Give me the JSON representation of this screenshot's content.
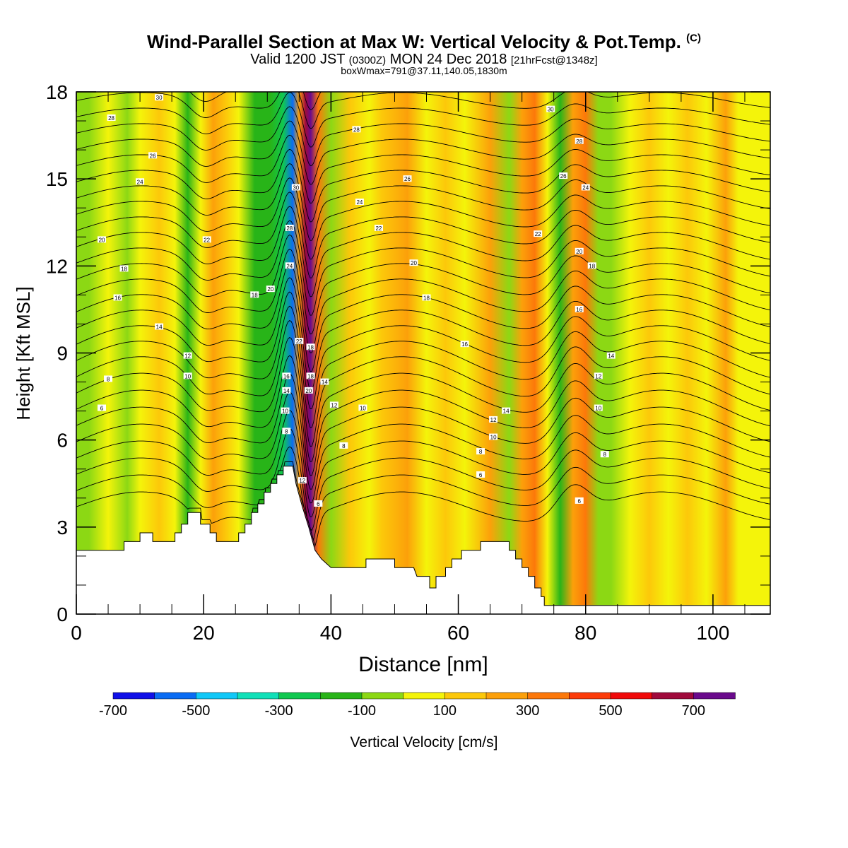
{
  "title": {
    "main": "Wind-Parallel Section at Max W: Vertical Velocity & Pot.Temp.",
    "copyright": "(C)",
    "valid_prefix": "Valid 1200 JST",
    "valid_z": "(0300Z)",
    "valid_date": "MON 24 Dec 2018",
    "forecast": "[21hrFcst@1348z]",
    "boxline": "boxWmax=791@37.11,140.05,1830m"
  },
  "chart_data": {
    "type": "heatmap",
    "xlabel": "Distance [nm]",
    "ylabel": "Height [Kft MSL]",
    "xlim": [
      0,
      109
    ],
    "ylim": [
      0,
      18
    ],
    "x_ticks": [
      0,
      20,
      40,
      60,
      80,
      100
    ],
    "y_ticks": [
      0,
      3,
      6,
      9,
      12,
      15,
      18
    ],
    "colorbar": {
      "label": "Vertical Velocity [cm/s]",
      "tick_labels": [
        "-700",
        "-500",
        "-300",
        "-100",
        "100",
        "300",
        "500",
        "700"
      ],
      "colors": [
        "#1010e8",
        "#0a6cf4",
        "#10c8f8",
        "#10e0b8",
        "#10c850",
        "#28b418",
        "#8cd814",
        "#f4f40a",
        "#fcc80a",
        "#fca00a",
        "#fc780a",
        "#fc3c0a",
        "#f00a0a",
        "#a00a3c",
        "#6a0a8c"
      ]
    },
    "terrain": [
      [
        0,
        2.2
      ],
      [
        7.5,
        2.2
      ],
      [
        7.5,
        2.5
      ],
      [
        10,
        2.5
      ],
      [
        10,
        2.8
      ],
      [
        12,
        2.8
      ],
      [
        12,
        2.5
      ],
      [
        15.5,
        2.5
      ],
      [
        15.5,
        2.8
      ],
      [
        16.5,
        2.8
      ],
      [
        16.5,
        3.1
      ],
      [
        17.5,
        3.1
      ],
      [
        17.5,
        3.5
      ],
      [
        19.5,
        3.5
      ],
      [
        19.5,
        3.1
      ],
      [
        21,
        3.1
      ],
      [
        21,
        2.8
      ],
      [
        22,
        2.8
      ],
      [
        22,
        2.5
      ],
      [
        25.5,
        2.5
      ],
      [
        25.5,
        2.8
      ],
      [
        26.5,
        2.8
      ],
      [
        26.5,
        3.1
      ],
      [
        27.5,
        3.1
      ],
      [
        27.5,
        3.5
      ],
      [
        28.5,
        3.5
      ],
      [
        28.5,
        3.8
      ],
      [
        29.5,
        3.8
      ],
      [
        29.5,
        4.2
      ],
      [
        30.5,
        4.2
      ],
      [
        30.5,
        4.5
      ],
      [
        31.5,
        4.5
      ],
      [
        31.5,
        4.8
      ],
      [
        32.5,
        4.8
      ],
      [
        32.5,
        5.1
      ],
      [
        34,
        5.1
      ],
      [
        34.5,
        4.5
      ],
      [
        35.5,
        3.7
      ],
      [
        36.5,
        3.0
      ],
      [
        37.5,
        2.2
      ],
      [
        38.5,
        1.9
      ],
      [
        40,
        1.6
      ],
      [
        43,
        1.6
      ],
      [
        45.5,
        1.6
      ],
      [
        45.5,
        1.9
      ],
      [
        50,
        1.9
      ],
      [
        50,
        1.6
      ],
      [
        53,
        1.6
      ],
      [
        53.5,
        1.3
      ],
      [
        55.5,
        1.3
      ],
      [
        55.5,
        0.9
      ],
      [
        56.5,
        0.9
      ],
      [
        56.5,
        1.3
      ],
      [
        58,
        1.3
      ],
      [
        58,
        1.6
      ],
      [
        59,
        1.6
      ],
      [
        59,
        1.9
      ],
      [
        60.5,
        1.9
      ],
      [
        60.5,
        2.2
      ],
      [
        63.5,
        2.2
      ],
      [
        63.5,
        2.5
      ],
      [
        68,
        2.5
      ],
      [
        68,
        2.2
      ],
      [
        69,
        2.2
      ],
      [
        69,
        1.9
      ],
      [
        70,
        1.9
      ],
      [
        70,
        1.6
      ],
      [
        71,
        1.6
      ],
      [
        71,
        1.3
      ],
      [
        72,
        1.3
      ],
      [
        72,
        0.9
      ],
      [
        73,
        0.9
      ],
      [
        73,
        0.6
      ],
      [
        73.5,
        0.6
      ],
      [
        73.5,
        0.3
      ],
      [
        109,
        0.3
      ]
    ],
    "bands": [
      {
        "x": 0,
        "v": -150
      },
      {
        "x": 2,
        "v": -150
      },
      {
        "x": 5,
        "v": -100
      },
      {
        "x": 8,
        "v": -150
      },
      {
        "x": 10,
        "v": -100
      },
      {
        "x": 13,
        "v": 0
      },
      {
        "x": 15.5,
        "v": -100
      },
      {
        "x": 17.5,
        "v": -250
      },
      {
        "x": 19.5,
        "v": -100
      },
      {
        "x": 21.5,
        "v": 120
      },
      {
        "x": 23.5,
        "v": 60
      },
      {
        "x": 25.5,
        "v": -100
      },
      {
        "x": 28,
        "v": -250
      },
      {
        "x": 30.5,
        "v": -300
      },
      {
        "x": 32.5,
        "v": -400
      },
      {
        "x": 34,
        "v": -700
      },
      {
        "x": 35,
        "v": 150
      },
      {
        "x": 36,
        "v": 550
      },
      {
        "x": 36.8,
        "v": 750
      },
      {
        "x": 38,
        "v": 250
      },
      {
        "x": 40,
        "v": -150
      },
      {
        "x": 43,
        "v": 0
      },
      {
        "x": 46,
        "v": -100
      },
      {
        "x": 48,
        "v": 0
      },
      {
        "x": 52,
        "v": 120
      },
      {
        "x": 55,
        "v": -100
      },
      {
        "x": 58,
        "v": 80
      },
      {
        "x": 61,
        "v": -100
      },
      {
        "x": 65,
        "v": 120
      },
      {
        "x": 68,
        "v": -150
      },
      {
        "x": 70,
        "v": 150
      },
      {
        "x": 72,
        "v": 250
      },
      {
        "x": 74,
        "v": -100
      },
      {
        "x": 76,
        "v": -250
      },
      {
        "x": 78,
        "v": 120
      },
      {
        "x": 80,
        "v": 250
      },
      {
        "x": 82,
        "v": -150
      },
      {
        "x": 84,
        "v": -150
      },
      {
        "x": 87,
        "v": -100
      },
      {
        "x": 90,
        "v": 80
      },
      {
        "x": 93,
        "v": -100
      },
      {
        "x": 96,
        "v": 60
      },
      {
        "x": 99,
        "v": -100
      },
      {
        "x": 102,
        "v": 150
      },
      {
        "x": 104,
        "v": -100
      },
      {
        "x": 109,
        "v": -100
      }
    ],
    "contour_labels": [
      {
        "x": 13,
        "y": 17.8,
        "t": "30"
      },
      {
        "x": 5.5,
        "y": 17.1,
        "t": "28"
      },
      {
        "x": 12,
        "y": 15.8,
        "t": "26"
      },
      {
        "x": 10,
        "y": 14.9,
        "t": "24"
      },
      {
        "x": 4,
        "y": 12.9,
        "t": "20"
      },
      {
        "x": 7.5,
        "y": 11.9,
        "t": "18"
      },
      {
        "x": 6.5,
        "y": 10.9,
        "t": "16"
      },
      {
        "x": 13,
        "y": 9.9,
        "t": "14"
      },
      {
        "x": 17.5,
        "y": 8.9,
        "t": "12"
      },
      {
        "x": 17.5,
        "y": 8.2,
        "t": "10"
      },
      {
        "x": 5,
        "y": 8.1,
        "t": "8"
      },
      {
        "x": 4,
        "y": 7.1,
        "t": "6"
      },
      {
        "x": 20.5,
        "y": 12.9,
        "t": "22"
      },
      {
        "x": 28,
        "y": 11.0,
        "t": "18"
      },
      {
        "x": 30.5,
        "y": 11.2,
        "t": "20"
      },
      {
        "x": 33.5,
        "y": 12.0,
        "t": "24"
      },
      {
        "x": 33.5,
        "y": 13.3,
        "t": "28"
      },
      {
        "x": 34.5,
        "y": 14.7,
        "t": "30"
      },
      {
        "x": 35,
        "y": 9.4,
        "t": "22"
      },
      {
        "x": 33,
        "y": 8.2,
        "t": "16"
      },
      {
        "x": 33,
        "y": 7.7,
        "t": "14"
      },
      {
        "x": 32.8,
        "y": 7.0,
        "t": "10"
      },
      {
        "x": 33,
        "y": 6.3,
        "t": "8"
      },
      {
        "x": 35.5,
        "y": 4.6,
        "t": "12"
      },
      {
        "x": 36.5,
        "y": 7.7,
        "t": "20"
      },
      {
        "x": 36.8,
        "y": 9.2,
        "t": "18"
      },
      {
        "x": 36.8,
        "y": 8.2,
        "t": "18"
      },
      {
        "x": 39,
        "y": 8.0,
        "t": "14"
      },
      {
        "x": 40.5,
        "y": 7.2,
        "t": "12"
      },
      {
        "x": 45,
        "y": 7.1,
        "t": "10"
      },
      {
        "x": 42,
        "y": 5.8,
        "t": "8"
      },
      {
        "x": 38,
        "y": 3.8,
        "t": "6"
      },
      {
        "x": 44,
        "y": 16.7,
        "t": "28"
      },
      {
        "x": 44.5,
        "y": 14.2,
        "t": "24"
      },
      {
        "x": 47.5,
        "y": 13.3,
        "t": "22"
      },
      {
        "x": 52,
        "y": 15.0,
        "t": "26"
      },
      {
        "x": 53,
        "y": 12.1,
        "t": "20"
      },
      {
        "x": 55,
        "y": 10.9,
        "t": "18"
      },
      {
        "x": 61,
        "y": 9.3,
        "t": "16"
      },
      {
        "x": 65.5,
        "y": 6.7,
        "t": "12"
      },
      {
        "x": 67.5,
        "y": 7.0,
        "t": "14"
      },
      {
        "x": 65.5,
        "y": 6.1,
        "t": "10"
      },
      {
        "x": 63.5,
        "y": 5.6,
        "t": "8"
      },
      {
        "x": 63.5,
        "y": 4.8,
        "t": "6"
      },
      {
        "x": 74.5,
        "y": 17.4,
        "t": "30"
      },
      {
        "x": 79,
        "y": 16.3,
        "t": "28"
      },
      {
        "x": 76.5,
        "y": 15.1,
        "t": "26"
      },
      {
        "x": 80,
        "y": 14.7,
        "t": "24"
      },
      {
        "x": 72.5,
        "y": 13.1,
        "t": "22"
      },
      {
        "x": 79,
        "y": 12.5,
        "t": "20"
      },
      {
        "x": 81,
        "y": 12.0,
        "t": "18"
      },
      {
        "x": 79,
        "y": 10.5,
        "t": "16"
      },
      {
        "x": 84,
        "y": 8.9,
        "t": "14"
      },
      {
        "x": 82,
        "y": 8.2,
        "t": "12"
      },
      {
        "x": 82,
        "y": 7.1,
        "t": "10"
      },
      {
        "x": 83,
        "y": 5.5,
        "t": "8"
      },
      {
        "x": 79,
        "y": 3.9,
        "t": "6"
      }
    ]
  }
}
